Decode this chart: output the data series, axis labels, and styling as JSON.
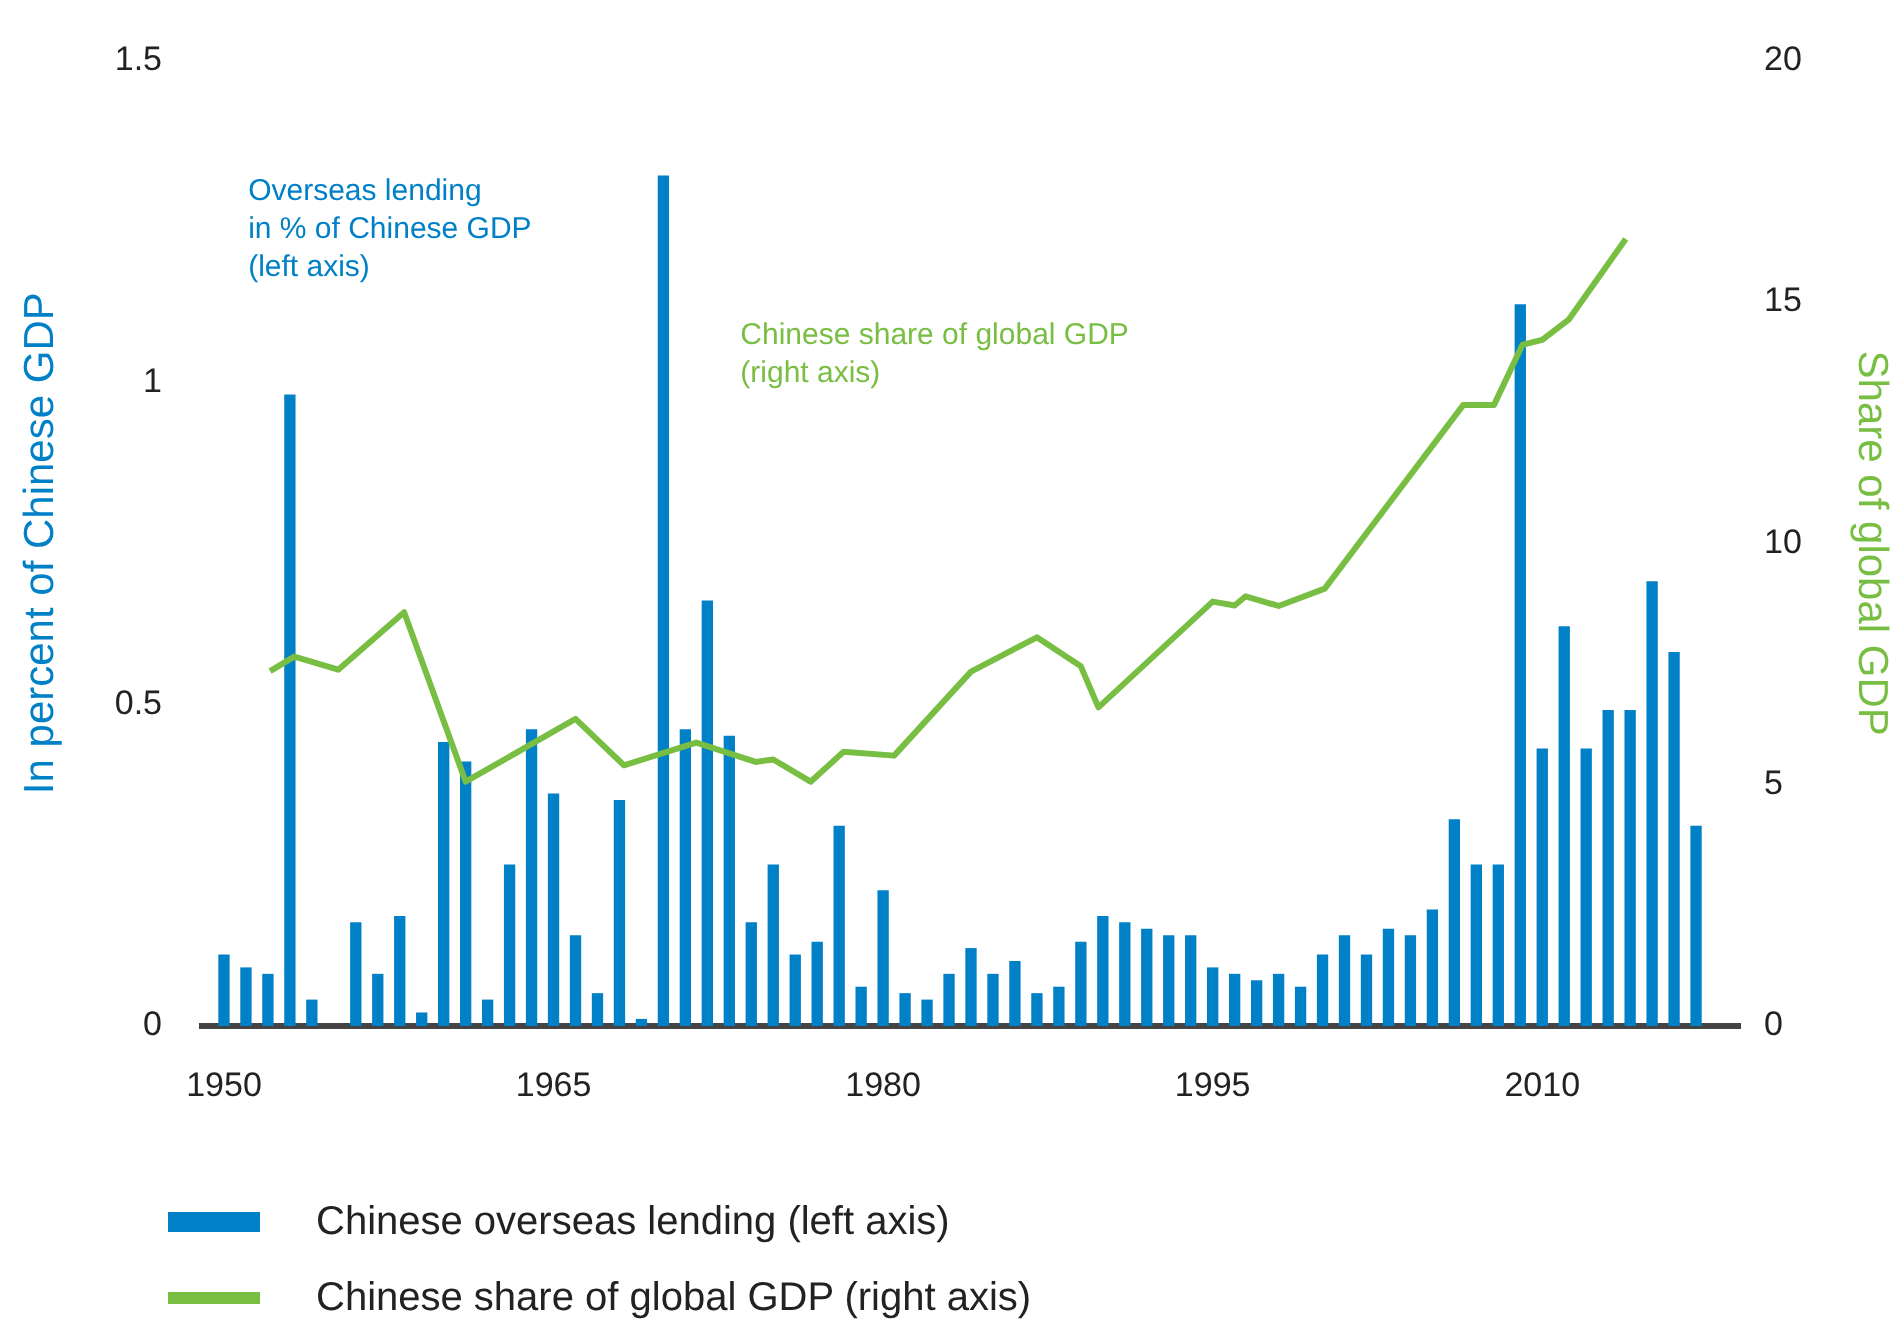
{
  "chart_data": {
    "type": "bar",
    "ylabel": "In percent of Chinese GDP",
    "y2label": "Share of global GDP",
    "annotations": [
      "Overseas lending\nin % of Chinese GDP\n(left axis)",
      "Chinese share of global GDP\n(right axis)"
    ],
    "xlim": [
      1949,
      2019
    ],
    "xticks": [
      1950,
      1965,
      1980,
      1995,
      2010
    ],
    "ylim": [
      0,
      1.5
    ],
    "yticks": [
      0,
      0.5,
      1,
      1.5
    ],
    "y2lim": [
      0,
      20
    ],
    "y2ticks": [
      0,
      5,
      10,
      15,
      20
    ],
    "grid": false,
    "legend": "bottom",
    "marker": "none",
    "line_style": "solid",
    "series": [
      {
        "name": "Chinese overseas lending (left axis)",
        "color": "#0080c6",
        "x": [
          1950,
          1951,
          1952,
          1953,
          1954,
          1955,
          1956,
          1957,
          1958,
          1959,
          1960,
          1961,
          1962,
          1963,
          1964,
          1965,
          1966,
          1967,
          1968,
          1969,
          1970,
          1971,
          1972,
          1973,
          1974,
          1975,
          1976,
          1977,
          1978,
          1979,
          1980,
          1981,
          1982,
          1983,
          1984,
          1985,
          1986,
          1987,
          1988,
          1989,
          1990,
          1991,
          1992,
          1993,
          1994,
          1995,
          1996,
          1997,
          1998,
          1999,
          2000,
          2001,
          2002,
          2003,
          2004,
          2005,
          2006,
          2007,
          2008,
          2009,
          2010,
          2011,
          2012,
          2013,
          2014,
          2015,
          2016,
          2017
        ],
        "values": [
          0.11,
          0.09,
          0.08,
          0.98,
          0.04,
          null,
          0.16,
          0.08,
          0.17,
          0.02,
          0.44,
          0.41,
          0.04,
          0.25,
          0.46,
          0.36,
          0.14,
          0.05,
          0.35,
          0.01,
          1.32,
          0.46,
          0.66,
          0.45,
          0.16,
          0.25,
          0.11,
          0.13,
          0.31,
          0.06,
          0.21,
          0.05,
          0.04,
          0.08,
          0.12,
          0.08,
          0.1,
          0.05,
          0.06,
          0.13,
          0.17,
          0.16,
          0.15,
          0.14,
          0.14,
          0.09,
          0.08,
          0.07,
          0.08,
          0.06,
          0.11,
          0.14,
          0.11,
          0.15,
          0.14,
          0.18,
          0.32,
          0.25,
          0.25,
          1.12,
          0.43,
          0.62,
          0.43,
          0.49,
          0.49,
          0.69,
          0.58,
          0.31
        ]
      },
      {
        "name": "Chinese share of global GDP (right axis)",
        "type": "line",
        "axis": "y2",
        "color": "#78be43",
        "x": [
          1952.1,
          1953.2,
          1955.2,
          1958.2,
          1961,
          1966,
          1968.2,
          1971.5,
          1974.2,
          1975,
          1976.7,
          1978.2,
          1980.5,
          1984,
          1987,
          1989,
          1989.8,
          1995,
          1996,
          1996.5,
          1998,
          2000.1,
          2006.4,
          2007.8,
          2009.1,
          2010,
          2011.2,
          2013.8
        ],
        "values": [
          7.35,
          7.65,
          7.38,
          8.57,
          5.06,
          6.36,
          5.4,
          5.87,
          5.47,
          5.52,
          5.06,
          5.68,
          5.6,
          7.34,
          8.05,
          7.45,
          6.6,
          8.79,
          8.71,
          8.9,
          8.7,
          9.06,
          12.86,
          12.86,
          14.11,
          14.21,
          14.63,
          16.3
        ]
      }
    ]
  }
}
